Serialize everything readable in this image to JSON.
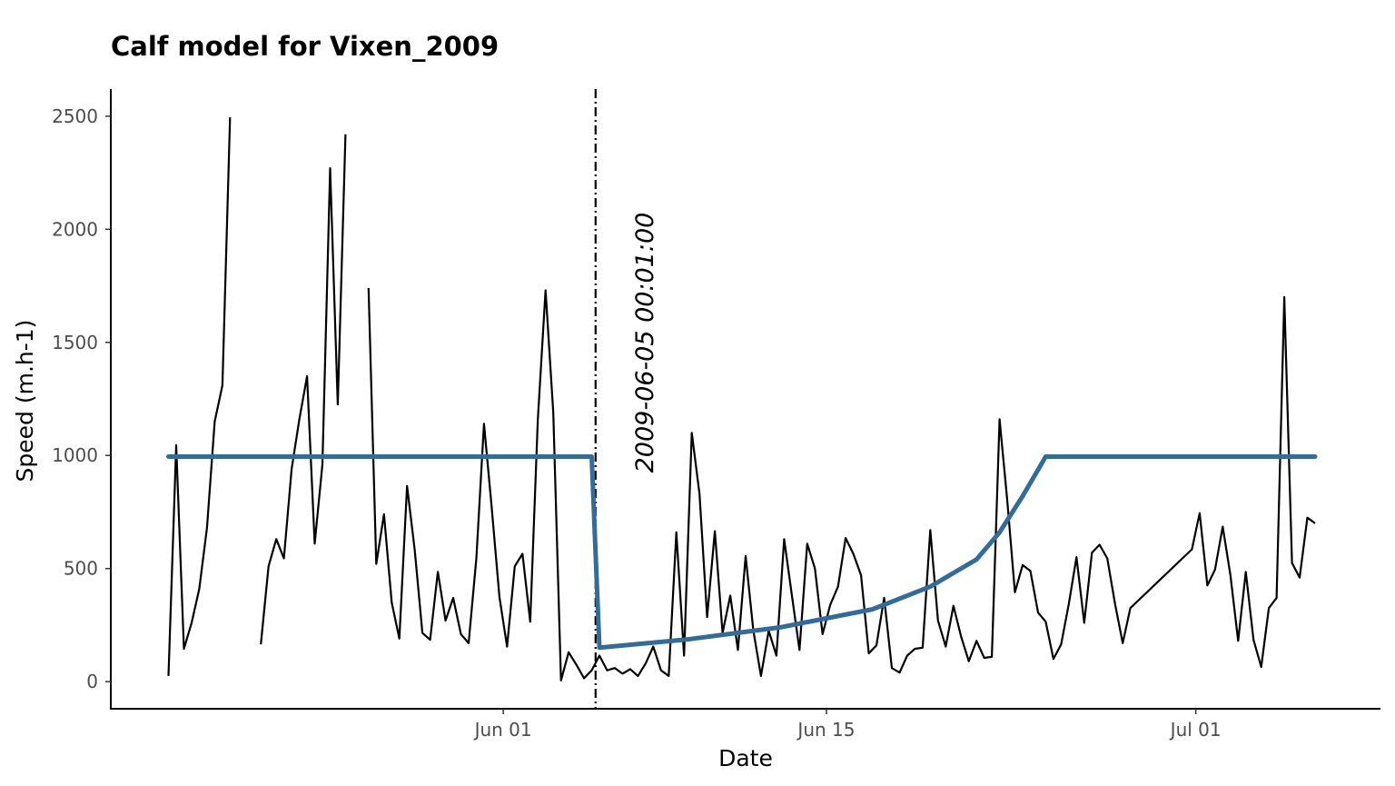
{
  "chart_data": {
    "type": "line",
    "title": "Calf model for Vixen_2009",
    "xlabel": "Date",
    "ylabel": "Speed (m.h-1)",
    "x_ticks": [
      "Jun 01",
      "Jun 15",
      "Jul 01"
    ],
    "y_ticks": [
      "0",
      "500",
      "1000",
      "1500",
      "2000",
      "2500"
    ],
    "xlim": [
      "2009-05-15",
      "2009-07-09"
    ],
    "ylim": [
      -120,
      2620
    ],
    "grid": false,
    "legend": "none",
    "annotation": {
      "text": "2009-06-05 00:01:00",
      "date": "2009-06-05"
    },
    "colors": {
      "observed": "#000000",
      "model": "#336b99",
      "vline": "#000000"
    },
    "series": [
      {
        "points": [
          [
            "2009-05-17T12:00",
            25
          ],
          [
            "2009-05-17T20:00",
            1045
          ],
          [
            "2009-05-18T04:00",
            145
          ],
          [
            "2009-05-18T12:00",
            260
          ],
          [
            "2009-05-18T20:00",
            410
          ],
          [
            "2009-05-19T04:00",
            680
          ],
          [
            "2009-05-19T12:00",
            1150
          ],
          [
            "2009-05-19T20:00",
            1310
          ],
          [
            "2009-05-20T04:00",
            2495
          ],
          null,
          [
            "2009-05-21T12:00",
            165
          ],
          [
            "2009-05-21T20:00",
            510
          ],
          [
            "2009-05-22T04:00",
            630
          ],
          [
            "2009-05-22T12:00",
            545
          ],
          [
            "2009-05-22T20:00",
            940
          ],
          [
            "2009-05-23T04:00",
            1160
          ],
          [
            "2009-05-23T12:00",
            1350
          ],
          [
            "2009-05-23T20:00",
            610
          ],
          [
            "2009-05-24T04:00",
            960
          ],
          [
            "2009-05-24T12:00",
            2270
          ],
          [
            "2009-05-24T20:00",
            1225
          ],
          [
            "2009-05-25T04:00",
            2420
          ],
          null,
          [
            "2009-05-26T04:00",
            1740
          ],
          [
            "2009-05-26T12:00",
            520
          ],
          [
            "2009-05-26T20:00",
            740
          ],
          [
            "2009-05-27T04:00",
            350
          ],
          [
            "2009-05-27T12:00",
            190
          ],
          [
            "2009-05-27T20:00",
            865
          ],
          [
            "2009-05-28T04:00",
            580
          ],
          [
            "2009-05-28T12:00",
            215
          ],
          [
            "2009-05-28T20:00",
            185
          ],
          [
            "2009-05-29T04:00",
            485
          ],
          [
            "2009-05-29T12:00",
            270
          ],
          [
            "2009-05-29T20:00",
            370
          ],
          [
            "2009-05-30T04:00",
            210
          ],
          [
            "2009-05-30T12:00",
            170
          ],
          [
            "2009-05-30T20:00",
            545
          ],
          [
            "2009-05-31T04:00",
            1140
          ],
          [
            "2009-05-31T12:00",
            770
          ],
          [
            "2009-05-31T20:00",
            375
          ],
          [
            "2009-06-01T04:00",
            155
          ],
          [
            "2009-06-01T12:00",
            510
          ],
          [
            "2009-06-01T20:00",
            565
          ],
          [
            "2009-06-02T04:00",
            265
          ],
          [
            "2009-06-02T12:00",
            1160
          ],
          [
            "2009-06-02T20:00",
            1730
          ],
          [
            "2009-06-03T04:00",
            1190
          ],
          [
            "2009-06-03T12:00",
            5
          ],
          [
            "2009-06-03T20:00",
            130
          ],
          [
            "2009-06-04T04:00",
            75
          ],
          [
            "2009-06-04T12:00",
            15
          ],
          [
            "2009-06-04T20:00",
            50
          ],
          [
            "2009-06-05T04:00",
            115
          ],
          [
            "2009-06-05T12:00",
            50
          ],
          [
            "2009-06-05T20:00",
            60
          ],
          [
            "2009-06-06T04:00",
            35
          ],
          [
            "2009-06-06T12:00",
            55
          ],
          [
            "2009-06-06T20:00",
            25
          ],
          [
            "2009-06-07T04:00",
            80
          ],
          [
            "2009-06-07T12:00",
            155
          ],
          [
            "2009-06-07T20:00",
            50
          ],
          [
            "2009-06-08T04:00",
            25
          ],
          [
            "2009-06-08T12:00",
            660
          ],
          [
            "2009-06-08T20:00",
            115
          ],
          [
            "2009-06-09T04:00",
            1100
          ],
          [
            "2009-06-09T12:00",
            830
          ],
          [
            "2009-06-09T20:00",
            285
          ],
          [
            "2009-06-10T04:00",
            665
          ],
          [
            "2009-06-10T12:00",
            215
          ],
          [
            "2009-06-10T20:00",
            380
          ],
          [
            "2009-06-11T04:00",
            140
          ],
          [
            "2009-06-11T12:00",
            555
          ],
          [
            "2009-06-11T20:00",
            225
          ],
          [
            "2009-06-12T04:00",
            25
          ],
          [
            "2009-06-12T12:00",
            225
          ],
          [
            "2009-06-12T20:00",
            115
          ],
          [
            "2009-06-13T04:00",
            630
          ],
          [
            "2009-06-13T12:00",
            385
          ],
          [
            "2009-06-13T20:00",
            140
          ],
          [
            "2009-06-14T04:00",
            610
          ],
          [
            "2009-06-14T12:00",
            500
          ],
          [
            "2009-06-14T20:00",
            210
          ],
          [
            "2009-06-15T04:00",
            340
          ],
          [
            "2009-06-15T12:00",
            420
          ],
          [
            "2009-06-15T20:00",
            635
          ],
          [
            "2009-06-16T04:00",
            565
          ],
          [
            "2009-06-16T12:00",
            470
          ],
          [
            "2009-06-16T20:00",
            125
          ],
          [
            "2009-06-17T04:00",
            160
          ],
          [
            "2009-06-17T12:00",
            370
          ],
          [
            "2009-06-17T20:00",
            60
          ],
          [
            "2009-06-18T04:00",
            40
          ],
          [
            "2009-06-18T12:00",
            115
          ],
          [
            "2009-06-18T20:00",
            145
          ],
          [
            "2009-06-19T04:00",
            150
          ],
          [
            "2009-06-19T12:00",
            670
          ],
          [
            "2009-06-19T20:00",
            270
          ],
          [
            "2009-06-20T04:00",
            155
          ],
          [
            "2009-06-20T12:00",
            335
          ],
          [
            "2009-06-20T20:00",
            200
          ],
          [
            "2009-06-21T04:00",
            90
          ],
          [
            "2009-06-21T12:00",
            180
          ],
          [
            "2009-06-21T20:00",
            105
          ],
          [
            "2009-06-22T04:00",
            110
          ],
          [
            "2009-06-22T12:00",
            1160
          ],
          [
            "2009-06-22T20:00",
            800
          ],
          [
            "2009-06-23T04:00",
            395
          ],
          [
            "2009-06-23T12:00",
            515
          ],
          [
            "2009-06-23T20:00",
            490
          ],
          [
            "2009-06-24T04:00",
            305
          ],
          [
            "2009-06-24T12:00",
            265
          ],
          [
            "2009-06-24T20:00",
            100
          ],
          [
            "2009-06-25T04:00",
            165
          ],
          [
            "2009-06-25T12:00",
            345
          ],
          [
            "2009-06-25T20:00",
            550
          ],
          [
            "2009-06-26T04:00",
            260
          ],
          [
            "2009-06-26T12:00",
            570
          ],
          [
            "2009-06-26T20:00",
            605
          ],
          [
            "2009-06-27T04:00",
            545
          ],
          [
            "2009-06-27T12:00",
            345
          ],
          [
            "2009-06-27T20:00",
            170
          ],
          [
            "2009-06-28T04:00",
            325
          ],
          [
            "2009-06-30T20:00",
            585
          ],
          [
            "2009-07-01T04:00",
            745
          ],
          [
            "2009-07-01T12:00",
            425
          ],
          [
            "2009-07-01T20:00",
            495
          ],
          [
            "2009-07-02T04:00",
            685
          ],
          [
            "2009-07-02T12:00",
            470
          ],
          [
            "2009-07-02T20:00",
            180
          ],
          [
            "2009-07-03T04:00",
            485
          ],
          [
            "2009-07-03T12:00",
            185
          ],
          [
            "2009-07-03T20:00",
            65
          ],
          [
            "2009-07-04T04:00",
            325
          ],
          [
            "2009-07-04T12:00",
            370
          ],
          [
            "2009-07-04T20:00",
            1700
          ],
          [
            "2009-07-05T04:00",
            525
          ],
          [
            "2009-07-05T12:00",
            460
          ],
          [
            "2009-07-05T20:00",
            725
          ],
          [
            "2009-07-06T04:00",
            700
          ]
        ]
      },
      {
        "points": [
          [
            "2009-05-17T12:00",
            995
          ],
          [
            "2009-06-04T20:00",
            995
          ],
          [
            "2009-06-05T04:00",
            150
          ],
          [
            "2009-06-09T00:00",
            187
          ],
          [
            "2009-06-13T00:00",
            240
          ],
          [
            "2009-06-17T00:00",
            320
          ],
          [
            "2009-06-19T12:00",
            420
          ],
          [
            "2009-06-21T12:00",
            540
          ],
          [
            "2009-06-22T12:00",
            660
          ],
          [
            "2009-06-23T12:00",
            820
          ],
          [
            "2009-06-24T12:00",
            995
          ],
          [
            "2009-07-06T04:00",
            995
          ]
        ]
      }
    ]
  }
}
